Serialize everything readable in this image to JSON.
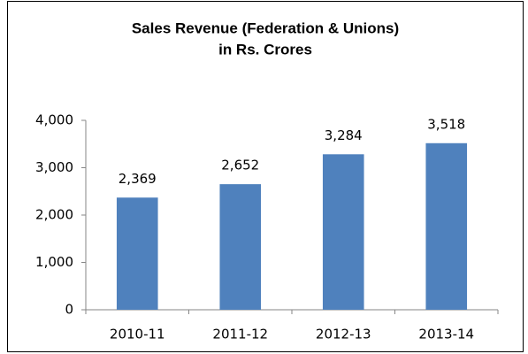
{
  "chart_data": {
    "type": "bar",
    "title": "Sales Revenue (Federation & Unions)",
    "subtitle": "in Rs. Crores",
    "categories": [
      "2010-11",
      "2011-12",
      "2012-13",
      "2013-14"
    ],
    "values": [
      2369,
      2652,
      3284,
      3518
    ],
    "value_labels": [
      "2,369",
      "2,652",
      "3,284",
      "3,518"
    ],
    "color": "#4f81bd",
    "ylim": [
      0,
      4000
    ],
    "yticks": [
      0,
      {
        "value": 1000,
        "label": "1,000"
      },
      {
        "value": 2000,
        "label": "2,000"
      },
      {
        "value": 3000,
        "label": "3,000"
      },
      {
        "value": 4000,
        "label": "4,000"
      }
    ],
    "grid": false
  }
}
